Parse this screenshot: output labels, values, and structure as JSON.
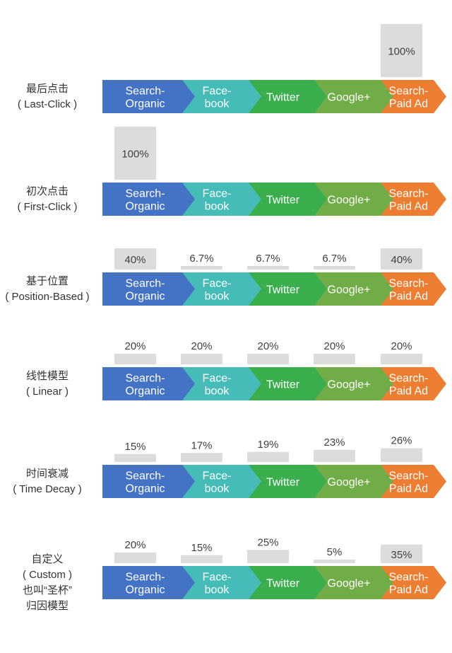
{
  "channels": [
    {
      "lines": [
        "Search-",
        "Organic"
      ],
      "color": "#4472c4"
    },
    {
      "lines": [
        "Face-",
        "book"
      ],
      "color": "#45bcb7"
    },
    {
      "lines": [
        "Twitter"
      ],
      "color": "#3aae4d"
    },
    {
      "lines": [
        "Google+"
      ],
      "color": "#70ad47"
    },
    {
      "lines": [
        "Search-",
        "Paid Ad"
      ],
      "color": "#ed7d31"
    }
  ],
  "bar_color": "#dcdcdc",
  "models": [
    {
      "label": [
        "最后点击",
        "( Last-Click )"
      ],
      "values": [
        "",
        "",
        "",
        "",
        "100%"
      ],
      "shares": [
        0,
        0,
        0,
        0,
        100
      ]
    },
    {
      "label": [
        "初次点击",
        "( First-Click )"
      ],
      "values": [
        "100%",
        "",
        "",
        "",
        ""
      ],
      "shares": [
        100,
        0,
        0,
        0,
        0
      ]
    },
    {
      "label": [
        "基于位置",
        "( Position-Based )"
      ],
      "values": [
        "40%",
        "6.7%",
        "6.7%",
        "6.7%",
        "40%"
      ],
      "shares": [
        40,
        6.7,
        6.7,
        6.7,
        40
      ]
    },
    {
      "label": [
        "线性模型",
        "( Linear )"
      ],
      "values": [
        "20%",
        "20%",
        "20%",
        "20%",
        "20%"
      ],
      "shares": [
        20,
        20,
        20,
        20,
        20
      ]
    },
    {
      "label": [
        "时间衰减",
        "( Time Decay )"
      ],
      "values": [
        "15%",
        "17%",
        "19%",
        "23%",
        "26%"
      ],
      "shares": [
        15,
        17,
        19,
        23,
        26
      ]
    },
    {
      "label": [
        "自定义",
        "( Custom )",
        "也叫“圣杯”",
        "归因模型"
      ],
      "values": [
        "20%",
        "15%",
        "25%",
        "5%",
        "35%"
      ],
      "shares": [
        20,
        15,
        25,
        5,
        35
      ]
    }
  ]
}
